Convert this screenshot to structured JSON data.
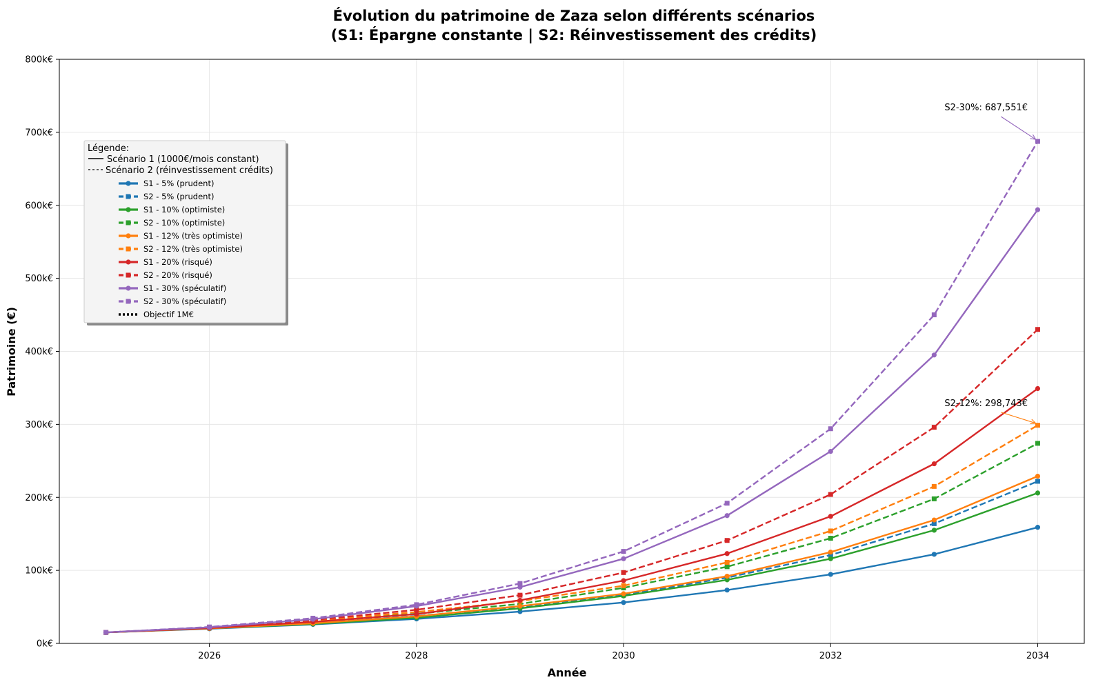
{
  "chart_data": {
    "type": "line",
    "title_line1": "Évolution du patrimoine de Zaza selon différents scénarios",
    "title_line2": "(S1: Épargne constante | S2: Réinvestissement des crédits)",
    "xlabel": "Année",
    "ylabel": "Patrimoine (€)",
    "xlim": [
      2024.55,
      2034.45
    ],
    "ylim": [
      0,
      800000
    ],
    "x_ticks": [
      2026,
      2028,
      2030,
      2032,
      2034
    ],
    "x_tick_labels": [
      "2026",
      "2028",
      "2030",
      "2032",
      "2034"
    ],
    "y_ticks": [
      0,
      100000,
      200000,
      300000,
      400000,
      500000,
      600000,
      700000,
      800000
    ],
    "y_tick_labels": [
      "0k€",
      "100k€",
      "200k€",
      "300k€",
      "400k€",
      "500k€",
      "600k€",
      "700k€",
      "800k€"
    ],
    "grid": true,
    "legend_placement": "upper-left",
    "x": [
      2025,
      2026,
      2027,
      2028,
      2029,
      2030,
      2031,
      2032,
      2033,
      2034
    ],
    "series": [
      {
        "name": "S1 - 5% (prudent)",
        "color": "#1f77b4",
        "style": "solid",
        "marker": "circle",
        "values": [
          15000,
          20000,
          26000,
          33500,
          43500,
          56000,
          73000,
          94500,
          122000,
          159000
        ]
      },
      {
        "name": "S2 - 5% (prudent)",
        "color": "#1f77b4",
        "style": "dashed",
        "marker": "square",
        "values": [
          15000,
          21000,
          28000,
          37500,
          49500,
          66000,
          90000,
          121000,
          164000,
          222000
        ]
      },
      {
        "name": "S1 - 10% (optimiste)",
        "color": "#2ca02c",
        "style": "solid",
        "marker": "circle",
        "values": [
          15000,
          20500,
          26500,
          35000,
          48000,
          65000,
          87000,
          116000,
          155000,
          206000
        ]
      },
      {
        "name": "S2 - 10% (optimiste)",
        "color": "#2ca02c",
        "style": "dashed",
        "marker": "square",
        "values": [
          15000,
          21500,
          30500,
          40500,
          54000,
          76000,
          105000,
          144000,
          198000,
          274000
        ]
      },
      {
        "name": "S1 - 12% (très optimiste)",
        "color": "#ff7f0e",
        "style": "solid",
        "marker": "circle",
        "values": [
          15000,
          20500,
          27500,
          37000,
          51000,
          68000,
          92000,
          125000,
          169000,
          229000
        ]
      },
      {
        "name": "S2 - 12% (très optimiste)",
        "color": "#ff7f0e",
        "style": "dashed",
        "marker": "square",
        "values": [
          15000,
          21500,
          31000,
          43000,
          58000,
          79000,
          111000,
          154000,
          215000,
          298743
        ]
      },
      {
        "name": "S1 - 20% (risqué)",
        "color": "#d62728",
        "style": "solid",
        "marker": "circle",
        "values": [
          15000,
          21000,
          29500,
          40000,
          59000,
          86000,
          123000,
          174000,
          246000,
          349000
        ]
      },
      {
        "name": "S2 - 20% (risqué)",
        "color": "#d62728",
        "style": "dashed",
        "marker": "square",
        "values": [
          15000,
          22000,
          32000,
          46000,
          66000,
          97000,
          141000,
          204000,
          296000,
          430000
        ]
      },
      {
        "name": "S1 - 30% (spéculatif)",
        "color": "#9467bd",
        "style": "solid",
        "marker": "circle",
        "values": [
          15000,
          22000,
          33000,
          51000,
          77000,
          116000,
          175000,
          263000,
          395000,
          594000
        ]
      },
      {
        "name": "S2 - 30% (spéculatif)",
        "color": "#9467bd",
        "style": "dashed",
        "marker": "square",
        "values": [
          15000,
          22500,
          34500,
          53000,
          82000,
          126000,
          192000,
          294000,
          450000,
          687551
        ]
      }
    ],
    "legend": {
      "header": "Légende:",
      "line1": "Scénario 1 (1000€/mois constant)",
      "line2": "Scénario 2 (réinvestissement crédits)",
      "objective_label": "Objectif 1M€",
      "objective_color": "#000000"
    },
    "annotations": [
      {
        "text": "S2-30%: 687,551€",
        "series_index": 9,
        "point_x": 2034,
        "point_y": 687551,
        "color": "#9467bd",
        "text_x": 2033.1,
        "text_y": 730000
      },
      {
        "text": "S2-12%: 298,743€",
        "series_index": 5,
        "point_x": 2034,
        "point_y": 298743,
        "color": "#ff7f0e",
        "text_x": 2033.1,
        "text_y": 325000
      }
    ]
  }
}
